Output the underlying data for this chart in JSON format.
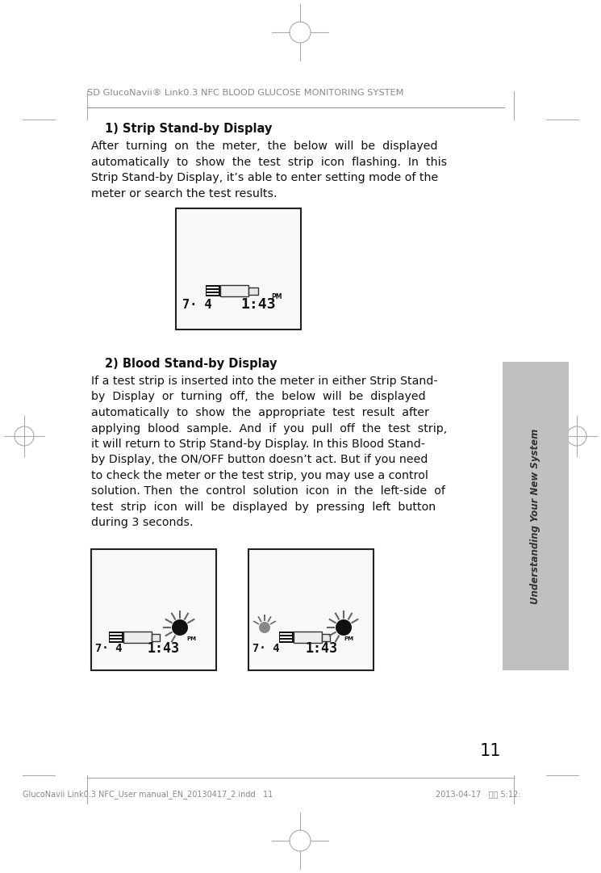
{
  "page_number": "11",
  "header_text": "SD GlucoNavii® Link0.3 NFC BLOOD GLUCOSE MONITORING SYSTEM",
  "sidebar_text": "Understanding Your New System",
  "section1_title": "1) Strip Stand-by Display",
  "section2_title": "2) Blood Stand-by Display",
  "footer_left": "GlucoNavii Link0.3 NFC_User manual_EN_20130417_2.indd   11",
  "footer_right": "2013-04-17   오후 5:12:",
  "bg_color": "#ffffff",
  "text_color": "#111111",
  "header_color": "#888888",
  "sidebar_bg": "#c0c0c0",
  "sidebar_text_color": "#333333",
  "line_color": "#999999",
  "mark_color": "#aaaaaa"
}
